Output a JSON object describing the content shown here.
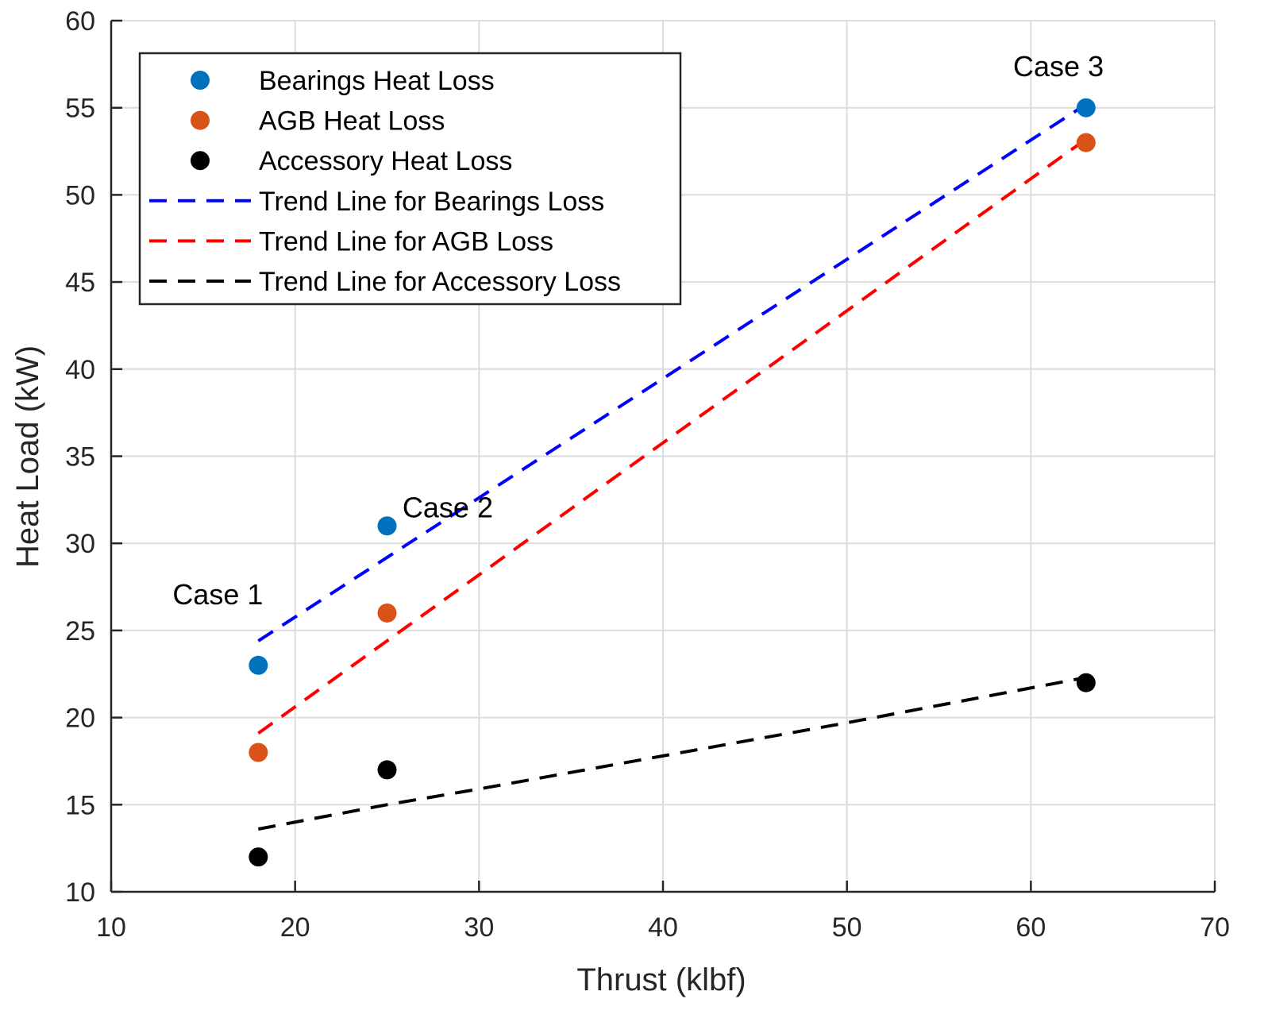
{
  "chart_data": {
    "type": "scatter",
    "title": "",
    "xlabel": "Thrust (klbf)",
    "ylabel": "Heat Load (kW)",
    "xlim": [
      10,
      70
    ],
    "ylim": [
      10,
      60
    ],
    "xticks": [
      10,
      20,
      30,
      40,
      50,
      60,
      70
    ],
    "yticks": [
      10,
      15,
      20,
      25,
      30,
      35,
      40,
      45,
      50,
      55,
      60
    ],
    "grid": true,
    "legend_position": "top-left",
    "series": [
      {
        "name": "Bearings Heat Loss",
        "kind": "points",
        "color": "#0072BD",
        "x": [
          18,
          25,
          63
        ],
        "y": [
          23,
          31,
          55
        ]
      },
      {
        "name": "AGB Heat Loss",
        "kind": "points",
        "color": "#D95319",
        "x": [
          18,
          25,
          63
        ],
        "y": [
          18,
          26,
          53
        ]
      },
      {
        "name": "Accessory Heat Loss",
        "kind": "points",
        "color": "#000000",
        "x": [
          18,
          25,
          63
        ],
        "y": [
          12,
          17,
          22
        ]
      },
      {
        "name": "Trend Line for Bearings Loss",
        "kind": "line",
        "color": "#0000FF",
        "x": [
          18,
          63
        ],
        "y": [
          24.4,
          55.2
        ]
      },
      {
        "name": "Trend Line for AGB Loss",
        "kind": "line",
        "color": "#FF0000",
        "x": [
          18,
          63
        ],
        "y": [
          19.1,
          53.2
        ]
      },
      {
        "name": "Trend Line for Accessory Loss",
        "kind": "curve",
        "color": "#000000",
        "x": [
          18,
          25,
          30,
          40,
          50,
          63
        ],
        "y": [
          13.6,
          15.0,
          15.9,
          17.8,
          19.7,
          22.3
        ]
      }
    ],
    "annotations": [
      {
        "text": "Case 1",
        "x": 15.8,
        "y": 26.5
      },
      {
        "text": "Case 2",
        "x": 28.3,
        "y": 31.5
      },
      {
        "text": "Case 3",
        "x": 61.5,
        "y": 56.8
      }
    ]
  }
}
